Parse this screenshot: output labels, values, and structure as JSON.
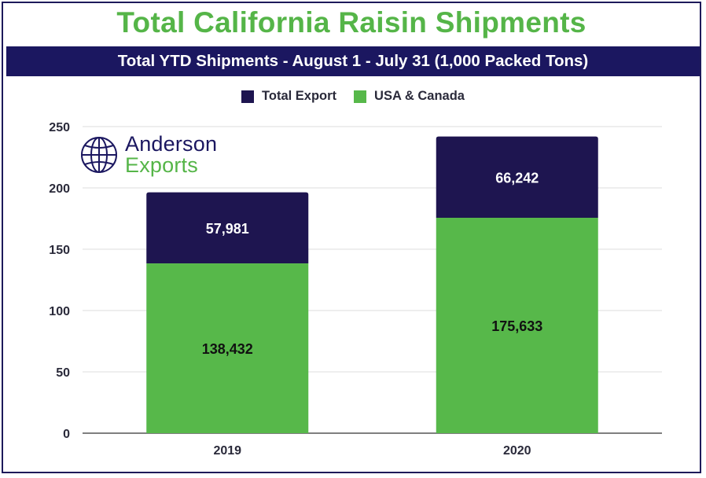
{
  "title": "Total California Raisin Shipments",
  "subtitle": "Total YTD Shipments - August 1 - July 31 (1,000 Packed Tons)",
  "logo": {
    "line1": "Anderson",
    "line2": "Exports"
  },
  "colors": {
    "total_export": "#1e1550",
    "usa_canada": "#57b84a",
    "title": "#55b548",
    "banner": "#1b1760"
  },
  "chart_data": {
    "type": "bar",
    "stacked": true,
    "categories": [
      "2019",
      "2020"
    ],
    "series": [
      {
        "name": "USA & Canada",
        "values": [
          138.432,
          175.633
        ],
        "labels": [
          "138,432",
          "175,633"
        ]
      },
      {
        "name": "Total Export",
        "values": [
          57.981,
          66.242
        ],
        "labels": [
          "57,981",
          "66,242"
        ]
      }
    ],
    "legend": [
      "Total Export",
      "USA & Canada"
    ],
    "ylim": [
      0,
      250
    ],
    "yticks": [
      0,
      50,
      100,
      150,
      200,
      250
    ],
    "grid": true,
    "legend_position": "top-center",
    "title": "Total California Raisin Shipments",
    "xlabel": "",
    "ylabel": ""
  }
}
